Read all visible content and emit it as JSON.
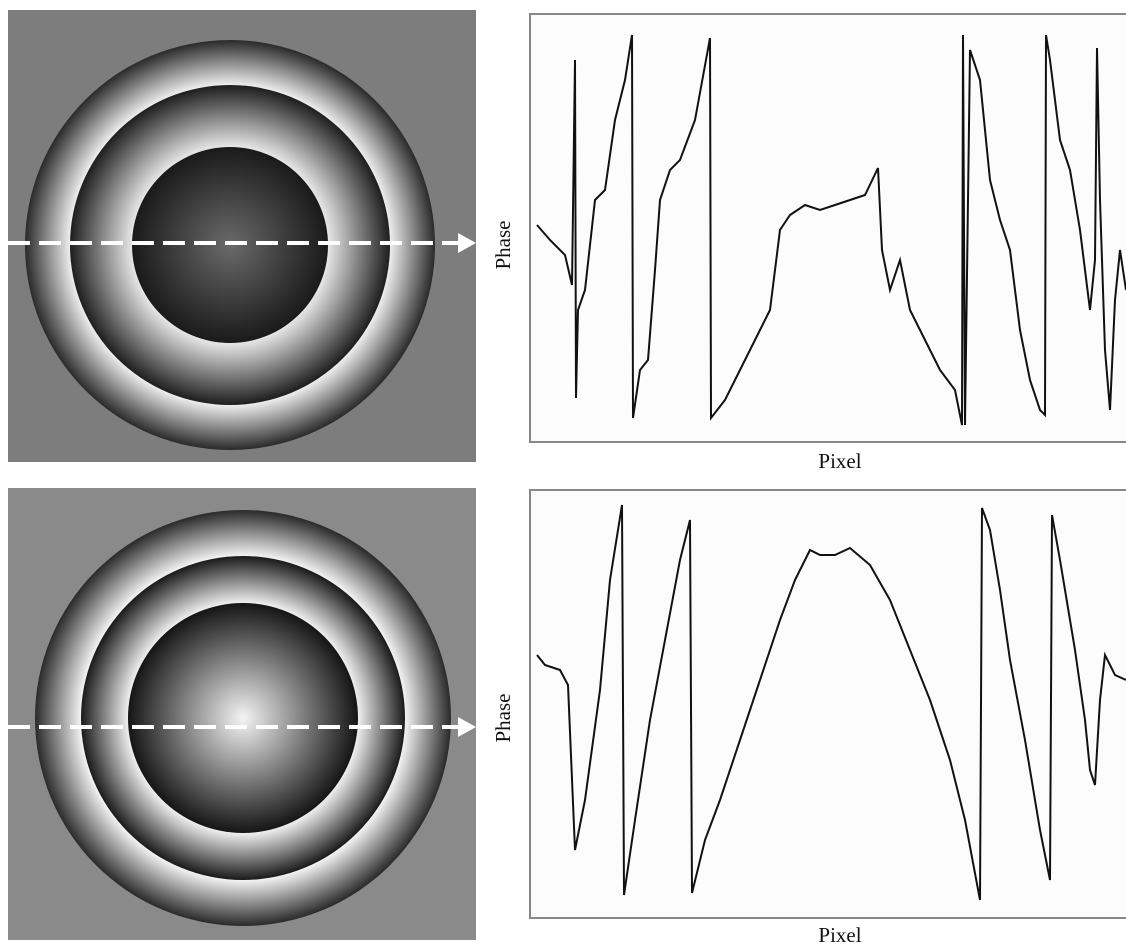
{
  "panels": [
    {
      "y_label": "Phase",
      "x_label": "Pixel"
    },
    {
      "y_label": "Phase",
      "x_label": "Pixel"
    }
  ]
}
